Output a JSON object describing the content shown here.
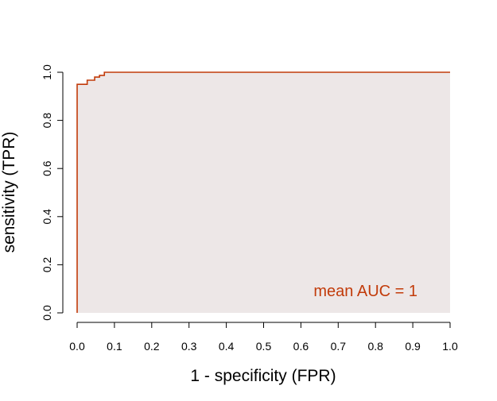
{
  "chart_data": {
    "type": "line",
    "xlabel": "1 - specificity (FPR)",
    "ylabel": "sensitivity (TPR)",
    "xlim": [
      0,
      1
    ],
    "ylim": [
      0,
      1
    ],
    "x_ticks": [
      "0.0",
      "0.1",
      "0.2",
      "0.3",
      "0.4",
      "0.5",
      "0.6",
      "0.7",
      "0.8",
      "0.9",
      "1.0"
    ],
    "y_ticks": [
      "0.0",
      "0.2",
      "0.4",
      "0.6",
      "0.8",
      "1.0"
    ],
    "grid": false,
    "area_fill": true,
    "series": [
      {
        "x": [
          0.0,
          0.0,
          0.027,
          0.027,
          0.047,
          0.047,
          0.06,
          0.06,
          0.073,
          0.073,
          1.0
        ],
        "y": [
          0.0,
          0.95,
          0.95,
          0.967,
          0.967,
          0.98,
          0.98,
          0.987,
          0.987,
          1.0,
          1.0
        ]
      }
    ],
    "annotation": "mean AUC = 1",
    "colors": {
      "line": "#c23b0a",
      "fill": "#ede7e7",
      "annotation": "#c23b0a",
      "axis": "#000000"
    }
  }
}
